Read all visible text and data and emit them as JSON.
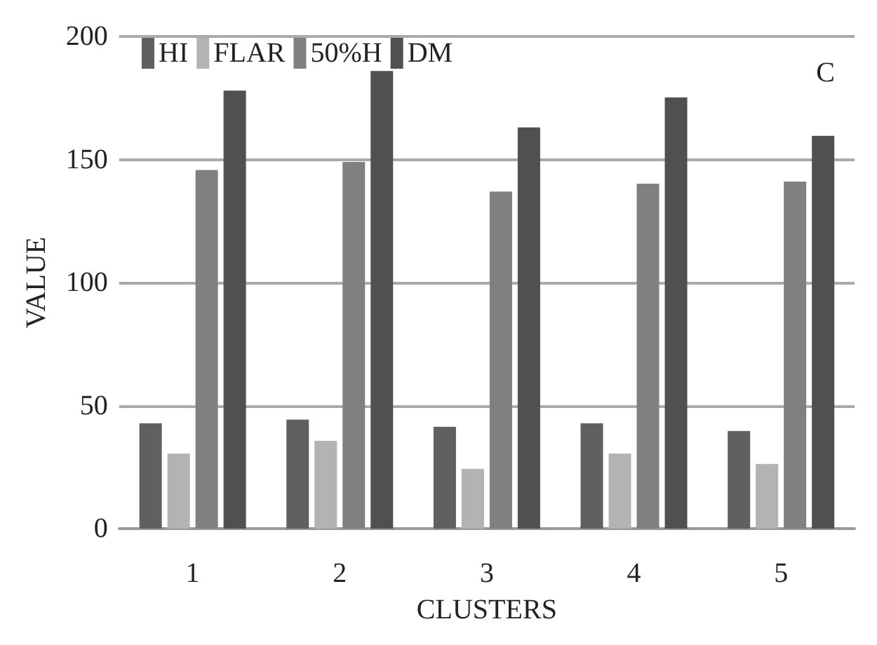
{
  "chart_data": {
    "type": "bar",
    "xlabel": "CLUSTERS",
    "ylabel": "VALUE",
    "annotations": [
      "C"
    ],
    "categories": [
      "1",
      "2",
      "3",
      "4",
      "5"
    ],
    "series": [
      {
        "name": "HI",
        "color": "#606060",
        "values": [
          42.8,
          44.3,
          41.4,
          42.8,
          39.7
        ]
      },
      {
        "name": "FLAR",
        "color": "#b3b3b3",
        "values": [
          30.5,
          35.7,
          24.3,
          30.5,
          26.3
        ]
      },
      {
        "name": "50%H",
        "color": "#808080",
        "values": [
          145.7,
          149,
          137,
          140.2,
          141
        ]
      },
      {
        "name": "DM",
        "color": "#505050",
        "values": [
          178,
          186,
          163,
          175.2,
          159.6
        ]
      }
    ],
    "ylim": [
      0,
      200
    ],
    "yticks": [
      0,
      50,
      100,
      150,
      200
    ],
    "grid": "y",
    "legend": "top left"
  }
}
